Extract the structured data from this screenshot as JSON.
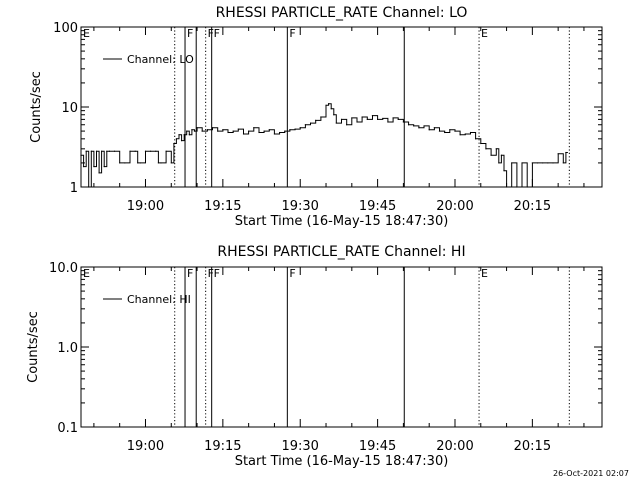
{
  "footer": {
    "timestamp": "26-Oct-2021 02:07"
  },
  "chart_data": [
    {
      "type": "line",
      "title": "RHESSI PARTICLE_RATE Channel: LO",
      "xlabel": "Start Time (16-May-15 18:47:30)",
      "ylabel": "Counts/sec",
      "yscale": "log",
      "xlim": [
        "18:47:30",
        "20:28:30"
      ],
      "ylim": [
        1,
        100
      ],
      "x_ticks": [
        "19:00",
        "19:15",
        "19:30",
        "19:45",
        "20:00",
        "20:15"
      ],
      "y_ticks": [
        "1",
        "10",
        "100"
      ],
      "legend": {
        "label": "Channel: LO",
        "placement": "top-left"
      },
      "series": [
        {
          "name": "Channel: LO",
          "x": [
            "18:47:30",
            "18:48:00",
            "18:48:30",
            "18:49:00",
            "18:49:30",
            "18:50:00",
            "18:50:30",
            "18:51:00",
            "18:51:30",
            "18:52:00",
            "18:52:30",
            "18:53:00",
            "18:54:00",
            "18:55:00",
            "18:56:00",
            "18:57:00",
            "18:58:00",
            "18:58:30",
            "18:59:00",
            "19:00:00",
            "19:01:00",
            "19:02:00",
            "19:02:30",
            "19:03:00",
            "19:04:00",
            "19:05:00",
            "19:05:30",
            "19:06:00",
            "19:06:30",
            "19:07:00",
            "19:07:30",
            "19:08:00",
            "19:08:30",
            "19:09:00",
            "19:09:30",
            "19:10:00",
            "19:11:00",
            "19:12:00",
            "19:13:00",
            "19:14:00",
            "19:15:00",
            "19:16:00",
            "19:17:00",
            "19:18:00",
            "19:19:00",
            "19:20:00",
            "19:21:00",
            "19:22:00",
            "19:23:00",
            "19:24:00",
            "19:25:00",
            "19:26:00",
            "19:27:00",
            "19:28:00",
            "19:29:00",
            "19:30:00",
            "19:31:00",
            "19:32:00",
            "19:33:00",
            "19:34:00",
            "19:35:00",
            "19:35:30",
            "19:36:00",
            "19:36:30",
            "19:37:00",
            "19:38:00",
            "19:39:00",
            "19:40:00",
            "19:41:00",
            "19:42:00",
            "19:43:00",
            "19:44:00",
            "19:45:00",
            "19:46:00",
            "19:47:00",
            "19:48:00",
            "19:49:00",
            "19:50:00",
            "19:51:00",
            "19:52:00",
            "19:53:00",
            "19:54:00",
            "19:55:00",
            "19:56:00",
            "19:57:00",
            "19:58:00",
            "19:59:00",
            "20:00:00",
            "20:01:00",
            "20:02:00",
            "20:03:00",
            "20:04:00",
            "20:05:00",
            "20:06:00",
            "20:07:00",
            "20:08:00",
            "20:08:30",
            "20:09:00",
            "20:09:30",
            "20:10:00",
            "20:11:00",
            "20:12:00",
            "20:13:00",
            "20:14:00",
            "20:15:00",
            "20:16:00",
            "20:17:00",
            "20:18:00",
            "20:19:00",
            "20:20:00",
            "20:21:00",
            "20:21:30"
          ],
          "values": [
            2.5,
            1.8,
            2.8,
            1.0,
            2.8,
            1.8,
            2.8,
            1.5,
            2.8,
            1.8,
            2.8,
            2.8,
            2.8,
            2.0,
            2.0,
            2.8,
            2.8,
            2.0,
            2.0,
            2.8,
            2.8,
            2.8,
            2.0,
            2.0,
            2.8,
            2.0,
            3.5,
            4.0,
            4.5,
            3.8,
            4.5,
            5.0,
            4.5,
            5.2,
            5.0,
            5.5,
            5.0,
            5.2,
            5.5,
            5.0,
            5.2,
            4.8,
            5.0,
            5.3,
            4.6,
            5.0,
            5.5,
            4.8,
            5.0,
            5.2,
            4.6,
            4.8,
            5.0,
            5.2,
            5.3,
            5.5,
            6.0,
            6.3,
            6.8,
            7.5,
            10.5,
            11.0,
            9.5,
            8.0,
            6.3,
            7.0,
            6.0,
            7.3,
            6.5,
            7.5,
            7.0,
            7.8,
            7.0,
            7.2,
            6.5,
            7.3,
            7.0,
            6.5,
            6.0,
            5.8,
            5.5,
            5.8,
            5.2,
            5.5,
            5.0,
            4.8,
            5.2,
            5.0,
            4.5,
            4.6,
            4.8,
            4.0,
            3.5,
            3.0,
            2.5,
            3.0,
            2.0,
            2.5,
            1.6,
            1.0,
            2.0,
            1.0,
            2.0,
            1.0,
            2.0,
            2.0,
            2.0,
            2.0,
            2.0,
            2.6,
            2.0,
            2.7
          ]
        }
      ],
      "annotations": [
        {
          "time": "18:47:30",
          "label": "E",
          "style": "dotted"
        },
        {
          "time": "19:05:40",
          "label": "",
          "style": "dotted"
        },
        {
          "time": "19:07:40",
          "label": "F",
          "style": "solid"
        },
        {
          "time": "19:09:50",
          "label": "",
          "style": "solid"
        },
        {
          "time": "19:11:40",
          "label": "F",
          "style": "dotted"
        },
        {
          "time": "19:12:50",
          "label": "F",
          "style": "solid"
        },
        {
          "time": "19:27:30",
          "label": "F",
          "style": "solid"
        },
        {
          "time": "19:50:10",
          "label": "",
          "style": "solid"
        },
        {
          "time": "20:04:40",
          "label": "E",
          "style": "dotted"
        },
        {
          "time": "20:22:10",
          "label": "",
          "style": "dotted"
        }
      ]
    },
    {
      "type": "line",
      "title": "RHESSI PARTICLE_RATE Channel: HI",
      "xlabel": "Start Time (16-May-15 18:47:30)",
      "ylabel": "Counts/sec",
      "yscale": "log",
      "xlim": [
        "18:47:30",
        "20:28:30"
      ],
      "ylim": [
        0.1,
        10.0
      ],
      "x_ticks": [
        "19:00",
        "19:15",
        "19:30",
        "19:45",
        "20:00",
        "20:15"
      ],
      "y_ticks": [
        "0.1",
        "1.0",
        "10.0"
      ],
      "legend": {
        "label": "Channel: HI",
        "placement": "top-left"
      },
      "series": [
        {
          "name": "Channel: HI",
          "x": [],
          "values": []
        }
      ],
      "annotations": [
        {
          "time": "18:47:30",
          "label": "E",
          "style": "dotted"
        },
        {
          "time": "19:05:40",
          "label": "",
          "style": "dotted"
        },
        {
          "time": "19:07:40",
          "label": "F",
          "style": "solid"
        },
        {
          "time": "19:09:50",
          "label": "",
          "style": "solid"
        },
        {
          "time": "19:11:40",
          "label": "F",
          "style": "dotted"
        },
        {
          "time": "19:12:50",
          "label": "F",
          "style": "solid"
        },
        {
          "time": "19:27:30",
          "label": "F",
          "style": "solid"
        },
        {
          "time": "19:50:10",
          "label": "",
          "style": "solid"
        },
        {
          "time": "20:04:40",
          "label": "E",
          "style": "dotted"
        },
        {
          "time": "20:22:10",
          "label": "",
          "style": "dotted"
        }
      ]
    }
  ]
}
